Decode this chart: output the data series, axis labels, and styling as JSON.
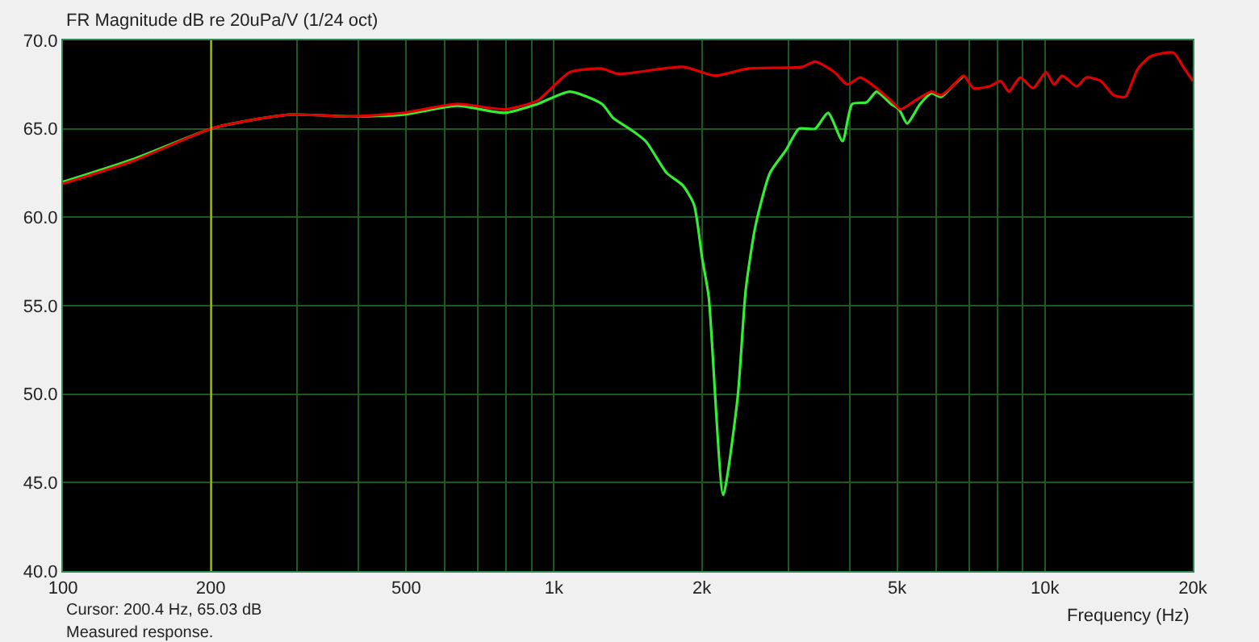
{
  "chart_data": {
    "type": "line",
    "title": "FR Magnitude dB re 20uPa/V (1/24 oct)",
    "xlabel": "Frequency (Hz)",
    "log": "x",
    "grid": true,
    "line_style": "solid",
    "marker": "none",
    "xlim": [
      100,
      20000
    ],
    "xticks": [
      100,
      200,
      {
        "value": 300,
        "label": null
      },
      {
        "value": 400,
        "label": null
      },
      500,
      {
        "value": 600,
        "label": null
      },
      {
        "value": 700,
        "label": null
      },
      {
        "value": 800,
        "label": null
      },
      {
        "value": 900,
        "label": null
      },
      {
        "value": 1000,
        "label": "1k"
      },
      {
        "value": 2000,
        "label": "2k"
      },
      {
        "value": 3000,
        "label": null
      },
      {
        "value": 4000,
        "label": null
      },
      {
        "value": 5000,
        "label": "5k"
      },
      {
        "value": 6000,
        "label": null
      },
      {
        "value": 7000,
        "label": null
      },
      {
        "value": 8000,
        "label": null
      },
      {
        "value": 9000,
        "label": null
      },
      {
        "value": 10000,
        "label": "10k"
      },
      {
        "value": 20000,
        "label": "20k"
      }
    ],
    "ylim": [
      40,
      70
    ],
    "yticks": [
      {
        "value": 40,
        "label": "40.0"
      },
      {
        "value": 45,
        "label": "45.0"
      },
      {
        "value": 50,
        "label": "50.0"
      },
      {
        "value": 55,
        "label": "55.0"
      },
      {
        "value": 60,
        "label": "60.0"
      },
      {
        "value": 65,
        "label": "65.0"
      },
      {
        "value": 70,
        "label": "70.0"
      }
    ],
    "ref_lines": [
      {
        "axis": "x",
        "value": 200.4,
        "color": "#c8c400"
      }
    ],
    "annotations": [
      "Cursor: 200.4 Hz, 65.03 dB",
      "Measured response."
    ],
    "series": [
      {
        "color": "#33ee33",
        "x": [
          100,
          139.5,
          200,
          232,
          291,
          385,
          494,
          634,
          796,
          926,
          1077,
          1253,
          1321,
          1425,
          1537,
          1697,
          1830,
          1929,
          2003,
          2066,
          2211,
          2366,
          2458,
          2572,
          2753,
          2969,
          3155,
          3403,
          3616,
          3870,
          4049,
          4335,
          4537,
          4858,
          5045,
          5240,
          5567,
          5870,
          6143,
          6477,
          6830
        ],
        "values": [
          62.0,
          63.3,
          65.0,
          65.4,
          65.8,
          65.7,
          65.8,
          66.3,
          65.9,
          66.4,
          67.1,
          66.4,
          65.6,
          65.0,
          64.3,
          62.5,
          61.8,
          60.7,
          57.7,
          55.5,
          44.3,
          49.8,
          55.9,
          59.5,
          62.5,
          63.8,
          65.0,
          65.0,
          65.9,
          64.3,
          66.4,
          66.5,
          67.1,
          66.4,
          66.1,
          65.3,
          66.4,
          67.0,
          66.8,
          67.4,
          68.0
        ]
      },
      {
        "color": "#e00000",
        "x": [
          100,
          139.5,
          200,
          232,
          291,
          385,
          494,
          634,
          796,
          926,
          1077,
          1253,
          1351,
          1830,
          2129,
          2477,
          3204,
          3403,
          3726,
          3958,
          4205,
          4537,
          4895,
          5083,
          5442,
          5870,
          6143,
          6477,
          6830,
          7145,
          7708,
          8127,
          8441,
          8900,
          9456,
          10046,
          10433,
          10837,
          11600,
          12140,
          12990,
          13800,
          14555,
          15462,
          16430,
          18270,
          19113,
          20000
        ],
        "values": [
          61.9,
          63.2,
          65.0,
          65.4,
          65.8,
          65.7,
          65.9,
          66.4,
          66.1,
          66.6,
          68.2,
          68.4,
          68.1,
          68.5,
          68.0,
          68.4,
          68.5,
          68.8,
          68.2,
          67.5,
          67.9,
          67.3,
          66.5,
          66.1,
          66.6,
          67.1,
          66.9,
          67.4,
          68.0,
          67.3,
          67.4,
          67.7,
          67.1,
          67.9,
          67.3,
          68.2,
          67.5,
          68.0,
          67.4,
          67.9,
          67.7,
          66.9,
          66.8,
          68.4,
          69.1,
          69.3,
          68.5,
          67.7
        ]
      }
    ]
  }
}
